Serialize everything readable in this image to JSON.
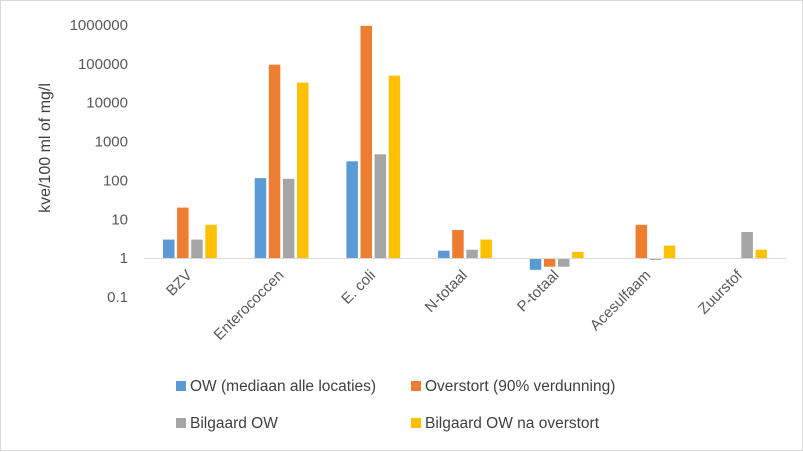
{
  "chart_data": {
    "type": "bar",
    "title": "",
    "xlabel": "",
    "ylabel": "kve/100 ml of mg/l",
    "yscale": "log",
    "ylim": [
      0.1,
      1000000
    ],
    "yticks": [
      "0.1",
      "1",
      "10",
      "100",
      "1000",
      "10000",
      "100000",
      "1000000"
    ],
    "grid": false,
    "legend_position": "bottom",
    "categories": [
      "BZV",
      "Enterococcen",
      "E. coli",
      "N-totaal",
      "P-totaal",
      "Acesulfaam",
      "Zuurstof"
    ],
    "series": [
      {
        "name": "OW (mediaan alle locaties)",
        "color": "#5b9bd5",
        "values": [
          3,
          115,
          310,
          1.55,
          0.5,
          null,
          null
        ]
      },
      {
        "name": "Overstort (90% verdunning)",
        "color": "#ed7d31",
        "values": [
          20,
          95000,
          950000,
          5.3,
          0.6,
          7.2,
          null
        ]
      },
      {
        "name": "Bilgaard OW",
        "color": "#a5a5a5",
        "values": [
          3,
          110,
          470,
          1.65,
          0.6,
          0.9,
          4.7
        ]
      },
      {
        "name": "Bilgaard OW na overstort",
        "color": "#ffc000",
        "values": [
          7.2,
          33000,
          50000,
          3.0,
          1.45,
          2.1,
          1.65
        ]
      }
    ]
  }
}
